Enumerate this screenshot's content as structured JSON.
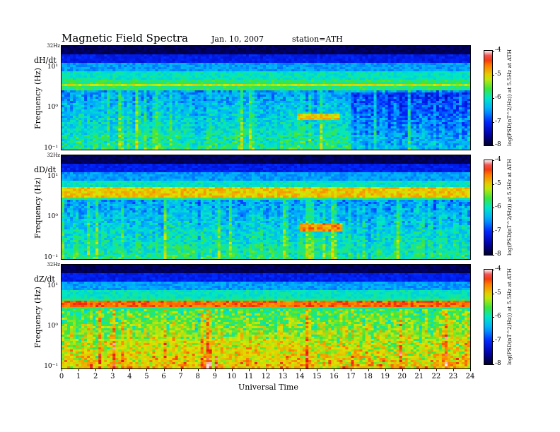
{
  "header": {
    "title": "Magnetic  Field  Spectra",
    "date": "Jan. 10, 2007",
    "station": "station=ATH"
  },
  "chart_data": [
    {
      "type": "heatmap",
      "panel": "dH/dt",
      "ylabel": "Frequency  (Hz)",
      "yscale": "log",
      "ylim": [
        0.1,
        32
      ],
      "y_ticks": [
        "10¹",
        "10⁰",
        "10⁻¹"
      ],
      "y_top_label": "32Hz",
      "xlim": [
        0,
        24
      ],
      "colorbar": {
        "range": [
          -8,
          -4
        ],
        "ticks": [
          "-4",
          "-5",
          "-6",
          "-7",
          "-8"
        ],
        "label": "log(PSD(nT^2/Hz)) at 5.5Hz at ATH"
      },
      "features": [
        {
          "band_hz": [
            3.4,
            3.8
          ],
          "level": -5.2,
          "note": "narrow band"
        },
        {
          "time_ut": [
            13.8,
            16.3
          ],
          "freq_hz": [
            0.55,
            0.75
          ],
          "level": -4.9,
          "note": "enhancement"
        }
      ]
    },
    {
      "type": "heatmap",
      "panel": "dD/dt",
      "ylabel": "Frequency  (Hz)",
      "yscale": "log",
      "ylim": [
        0.1,
        32
      ],
      "y_ticks": [
        "10¹",
        "10⁰",
        "10⁻¹"
      ],
      "y_top_label": "32Hz",
      "xlim": [
        0,
        24
      ],
      "colorbar": {
        "range": [
          -8,
          -4
        ],
        "ticks": [
          "-4",
          "-5",
          "-6",
          "-7",
          "-8"
        ],
        "label": "log(PSD(nT^2/Hz)) at 5.5Hz at ATH"
      },
      "features": [
        {
          "band_hz": [
            3.2,
            5.5
          ],
          "level": -5.0,
          "note": "narrow bands"
        },
        {
          "time_ut": [
            14.0,
            16.5
          ],
          "freq_hz": [
            0.45,
            0.7
          ],
          "level": -4.6,
          "note": "enhancement"
        }
      ]
    },
    {
      "type": "heatmap",
      "panel": "dZ/dt",
      "ylabel": "Frequency  (Hz)",
      "yscale": "log",
      "ylim": [
        0.1,
        32
      ],
      "y_ticks": [
        "10¹",
        "10⁰",
        "10⁻¹"
      ],
      "y_top_label": "32Hz",
      "xlim": [
        0,
        24
      ],
      "colorbar": {
        "range": [
          -8,
          -4
        ],
        "ticks": [
          "-4",
          "-5",
          "-6",
          "-7",
          "-8"
        ],
        "label": "log(PSD(nT^2/Hz)) at 5.5Hz at ATH"
      },
      "features": [
        {
          "band_hz": [
            3.2,
            4.5
          ],
          "level": -4.6,
          "note": "narrow bands"
        },
        {
          "time_ut": [
            3.0,
            15.0
          ],
          "freq_hz": [
            0.1,
            0.5
          ],
          "level": -5.2,
          "note": "broadband low-frequency activity"
        }
      ]
    }
  ],
  "xaxis": {
    "label": "Universal Time",
    "ticks": [
      "0",
      "1",
      "2",
      "3",
      "4",
      "5",
      "6",
      "7",
      "8",
      "9",
      "10",
      "11",
      "12",
      "13",
      "14",
      "15",
      "16",
      "17",
      "18",
      "19",
      "20",
      "21",
      "22",
      "23",
      "24"
    ]
  }
}
